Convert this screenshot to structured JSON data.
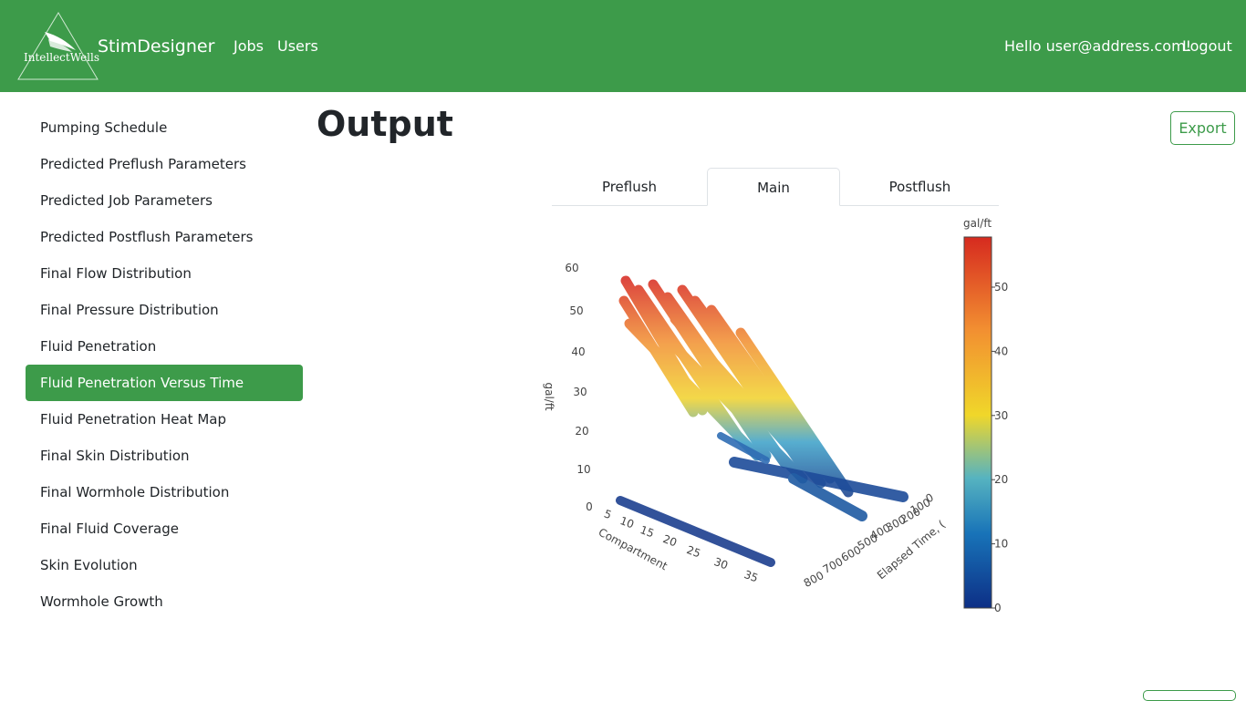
{
  "header": {
    "logo": "IntellectWells",
    "app": "StimDesigner",
    "nav": [
      "Jobs",
      "Users"
    ],
    "greeting": "Hello user@address.com!",
    "logout": "Logout"
  },
  "sidebar": {
    "items": [
      "Pumping Schedule",
      "Predicted Preflush Parameters",
      "Predicted Job Parameters",
      "Predicted Postflush Parameters",
      "Final Flow Distribution",
      "Final Pressure Distribution",
      "Fluid Penetration",
      "Fluid Penetration Versus Time",
      "Fluid Penetration Heat Map",
      "Final Skin Distribution",
      "Final Wormhole Distribution",
      "Final Fluid Coverage",
      "Skin Evolution",
      "Wormhole Growth"
    ],
    "active": 7
  },
  "main": {
    "title": "Output",
    "export": "Export",
    "tabs": [
      "Preflush",
      "Main",
      "Postflush"
    ],
    "active_tab": 1
  },
  "plot": {
    "colorbar_title": "gal/ft",
    "colorbar_ticks": [
      0,
      10,
      20,
      30,
      40,
      50
    ],
    "z_title": "gal/ft",
    "z_ticks": [
      0,
      10,
      20,
      30,
      40,
      50,
      60
    ],
    "x_title": "Compartment",
    "x_ticks": [
      5,
      10,
      15,
      20,
      25,
      30,
      35
    ],
    "y_title": "Elapsed Time, (",
    "y_ticks": [
      0,
      100,
      200,
      300,
      400,
      500,
      600,
      700,
      800
    ]
  }
}
